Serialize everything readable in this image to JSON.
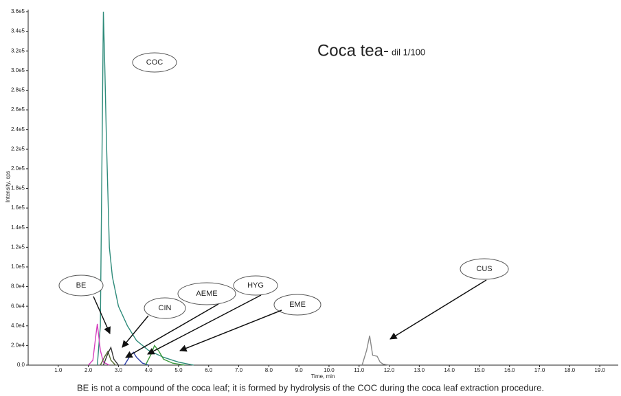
{
  "chart_data": {
    "type": "line",
    "title": "Coca tea-",
    "subtitle": "dil 1/100",
    "x_label": "Time, min",
    "y_label": "Intensity, cps",
    "note": "BE is not a compound of the coca leaf; it is formed by hydrolysis of the COC during the coca leaf extraction procedure.",
    "xlim": [
      0,
      19.5
    ],
    "ylim": [
      0,
      360000
    ],
    "xticks": [
      {
        "value": 1,
        "label": "1.0"
      },
      {
        "value": 2,
        "label": "2.0"
      },
      {
        "value": 3,
        "label": "3.0"
      },
      {
        "value": 4,
        "label": "4.0"
      },
      {
        "value": 5,
        "label": "5.0"
      },
      {
        "value": 6,
        "label": "6.0"
      },
      {
        "value": 7,
        "label": "7.0"
      },
      {
        "value": 8,
        "label": "8.0"
      },
      {
        "value": 9,
        "label": "9.0"
      },
      {
        "value": 10,
        "label": "10.0"
      },
      {
        "value": 11,
        "label": "11.0"
      },
      {
        "value": 12,
        "label": "12.0"
      },
      {
        "value": 13,
        "label": "13.0"
      },
      {
        "value": 14,
        "label": "14.0"
      },
      {
        "value": 15,
        "label": "15.0"
      },
      {
        "value": 16,
        "label": "16.0"
      },
      {
        "value": 17,
        "label": "17.0"
      },
      {
        "value": 18,
        "label": "18.0"
      },
      {
        "value": 19,
        "label": "19.0"
      }
    ],
    "yticks": [
      {
        "value": 0,
        "label": "0.0"
      },
      {
        "value": 20000,
        "label": "2.0e4"
      },
      {
        "value": 40000,
        "label": "4.0e4"
      },
      {
        "value": 60000,
        "label": "6.0e4"
      },
      {
        "value": 80000,
        "label": "8.0e4"
      },
      {
        "value": 100000,
        "label": "1.0e5"
      },
      {
        "value": 120000,
        "label": "1.2e5"
      },
      {
        "value": 140000,
        "label": "1.4e5"
      },
      {
        "value": 160000,
        "label": "1.6e5"
      },
      {
        "value": 180000,
        "label": "1.8e5"
      },
      {
        "value": 200000,
        "label": "2.0e5"
      },
      {
        "value": 220000,
        "label": "2.2e5"
      },
      {
        "value": 240000,
        "label": "2.4e5"
      },
      {
        "value": 260000,
        "label": "2.6e5"
      },
      {
        "value": 280000,
        "label": "2.8e5"
      },
      {
        "value": 300000,
        "label": "3.0e5"
      },
      {
        "value": 320000,
        "label": "3.2e5"
      },
      {
        "value": 340000,
        "label": "3.4e5"
      },
      {
        "value": 360000,
        "label": "3.6e5"
      }
    ],
    "series": [
      {
        "name": "COC",
        "color": "#2e8b7a",
        "x": [
          2.3,
          2.4,
          2.45,
          2.5,
          2.55,
          2.6,
          2.7,
          2.8,
          3.0,
          3.3,
          3.6,
          4.0,
          4.5,
          5.0,
          5.5
        ],
        "values": [
          0,
          40000,
          200000,
          360000,
          300000,
          230000,
          120000,
          90000,
          60000,
          40000,
          25000,
          15000,
          8000,
          3000,
          0
        ]
      },
      {
        "name": "BE",
        "color": "#d63fbf",
        "x": [
          2.0,
          2.15,
          2.25,
          2.3,
          2.4,
          2.5,
          2.7
        ],
        "values": [
          0,
          5000,
          30000,
          42000,
          15000,
          3000,
          0
        ]
      },
      {
        "name": "CIN",
        "color": "#556b2f",
        "x": [
          2.4,
          2.55,
          2.65,
          2.75,
          2.9
        ],
        "values": [
          0,
          9000,
          14000,
          5000,
          0
        ]
      },
      {
        "name": "AEME",
        "color": "#333333",
        "x": [
          2.5,
          2.65,
          2.75,
          2.85,
          3.0
        ],
        "values": [
          0,
          12000,
          18000,
          6000,
          0
        ]
      },
      {
        "name": "HYG",
        "color": "#2b3ea8",
        "x": [
          3.2,
          3.4,
          3.5,
          3.6,
          3.8,
          4.0
        ],
        "values": [
          0,
          10000,
          13000,
          8000,
          2000,
          0
        ]
      },
      {
        "name": "EME",
        "color": "#3c9a3c",
        "x": [
          3.9,
          4.1,
          4.2,
          4.35,
          4.5,
          4.8,
          5.2
        ],
        "values": [
          0,
          12000,
          20000,
          14000,
          6000,
          2000,
          0
        ]
      },
      {
        "name": "CUS",
        "color": "#888888",
        "x": [
          11.1,
          11.25,
          11.35,
          11.45,
          11.6,
          11.7,
          11.8,
          12.0
        ],
        "values": [
          0,
          15000,
          30000,
          10000,
          9000,
          3000,
          1000,
          0
        ]
      }
    ]
  }
}
